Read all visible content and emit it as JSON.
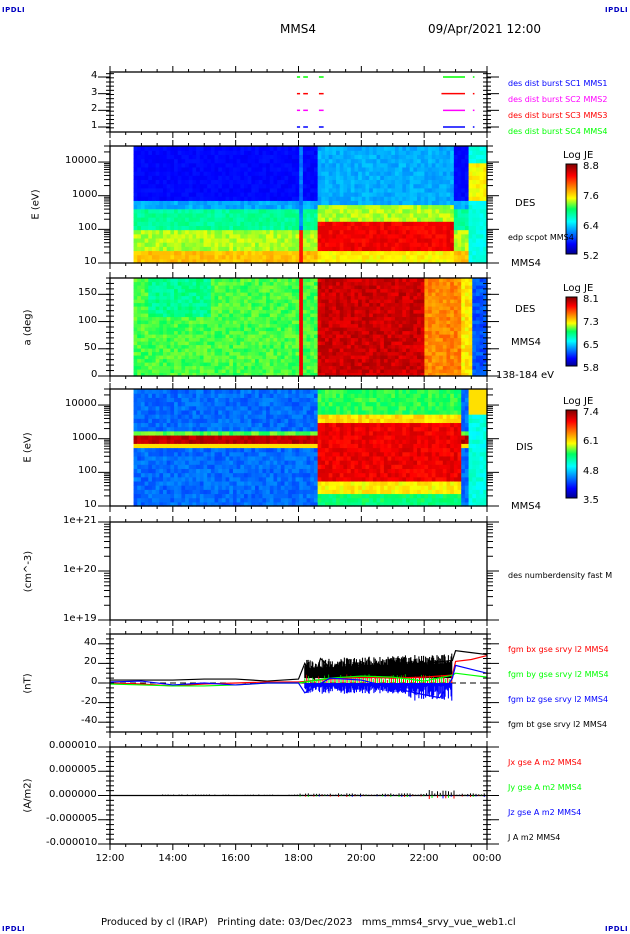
{
  "corner_tags": {
    "top_left": "IPDLI",
    "top_right": "IPDLI",
    "bottom_left": "IPDLI",
    "bottom_right": "IPDLI"
  },
  "header": {
    "spacecraft": "MMS4",
    "start_time": "09/Apr/2021 12:00"
  },
  "footer": {
    "text": "Produced by cl (IRAP)   Printing date: 03/Dec/2023   mms_mms4_srvy_vue_web1.cl"
  },
  "colors": {
    "blue": "#0000ff",
    "magenta": "#ff00ff",
    "red": "#ff0000",
    "green": "#00ff00",
    "black": "#000000"
  },
  "chart_data": [
    {
      "type": "line",
      "name": "burst-availability",
      "xlabel": "",
      "ylabel": "",
      "yticks": [
        "1",
        "2",
        "3",
        "4"
      ],
      "ylim": [
        0.7,
        4.3
      ],
      "legend": [
        {
          "label": "des dist burst SC1 MMS1",
          "color": "#0000ff"
        },
        {
          "label": "des dist burst SC2 MMS2",
          "color": "#ff00ff"
        },
        {
          "label": "des dist burst SC3 MMS3",
          "color": "#ff0000"
        },
        {
          "label": "des dist burst SC4 MMS4",
          "color": "#00ff00"
        }
      ],
      "series": [
        {
          "level": 4,
          "color": "#00ff00",
          "intervals": [
            [
              17.95,
              18.05
            ],
            [
              18.15,
              18.3
            ],
            [
              18.65,
              18.8
            ],
            [
              22.6,
              23.3
            ],
            [
              23.55,
              23.6
            ]
          ]
        },
        {
          "level": 3,
          "color": "#ff0000",
          "intervals": [
            [
              17.95,
              18.05
            ],
            [
              18.15,
              18.3
            ],
            [
              18.65,
              18.8
            ],
            [
              22.55,
              23.3
            ],
            [
              23.55,
              23.6
            ]
          ]
        },
        {
          "level": 2,
          "color": "#ff00ff",
          "intervals": [
            [
              17.95,
              18.05
            ],
            [
              18.15,
              18.3
            ],
            [
              18.65,
              18.8
            ],
            [
              22.6,
              23.3
            ],
            [
              23.55,
              23.6
            ]
          ]
        },
        {
          "level": 1,
          "color": "#0000ff",
          "intervals": [
            [
              17.95,
              18.05
            ],
            [
              18.15,
              18.3
            ],
            [
              18.65,
              18.8
            ],
            [
              22.6,
              23.3
            ],
            [
              23.55,
              23.6
            ]
          ]
        }
      ]
    },
    {
      "type": "heatmap",
      "name": "des-energy-spectrogram",
      "ylabel": "E (eV)",
      "yscale": "log",
      "yticks": [
        "10",
        "100",
        "1000",
        "10000"
      ],
      "ylim": [
        10,
        30000
      ],
      "colorbar": {
        "title": "Log JE",
        "ticks": [
          "8.8",
          "7.6",
          "6.4",
          "5.2"
        ],
        "range": [
          5.2,
          8.8
        ]
      },
      "labels": {
        "instrument": "DES",
        "overlay": "edp scpot MMS4",
        "spacecraft": "MMS4"
      }
    },
    {
      "type": "heatmap",
      "name": "des-pitch-angle",
      "ylabel": "a (deg)",
      "yticks": [
        "0",
        "50",
        "100",
        "150"
      ],
      "ylim": [
        0,
        180
      ],
      "colorbar": {
        "title": "Log JE",
        "ticks": [
          "8.1",
          "7.3",
          "6.5",
          "5.8"
        ],
        "range": [
          5.8,
          8.1
        ]
      },
      "labels": {
        "instrument": "DES",
        "spacecraft": "MMS4",
        "energy_range": "138-184 eV"
      }
    },
    {
      "type": "heatmap",
      "name": "dis-energy-spectrogram",
      "ylabel": "E (eV)",
      "yscale": "log",
      "yticks": [
        "10",
        "100",
        "1000",
        "10000"
      ],
      "ylim": [
        10,
        30000
      ],
      "colorbar": {
        "title": "Log JE",
        "ticks": [
          "7.4",
          "6.1",
          "4.8",
          "3.5"
        ],
        "range": [
          3.5,
          7.4
        ]
      },
      "labels": {
        "instrument": "DIS",
        "spacecraft": "MMS4"
      }
    },
    {
      "type": "line",
      "name": "des-number-density",
      "ylabel": "(cm^-3)",
      "yscale": "log",
      "yticks": [
        "1e+19",
        "1e+20",
        "1e+21"
      ],
      "ylim": [
        1e+19,
        1e+21
      ],
      "legend": [
        {
          "label": "des numberdensity fast M",
          "color": "#000000"
        }
      ]
    },
    {
      "type": "line",
      "name": "fgm-magnetic-field",
      "ylabel": "(nT)",
      "yticks": [
        "-40",
        "-20",
        "0",
        "20",
        "40"
      ],
      "ylim": [
        -50,
        50
      ],
      "legend": [
        {
          "label": "fgm bx gse srvy l2 MMS4",
          "color": "#ff0000"
        },
        {
          "label": "fgm by gse srvy l2 MMS4",
          "color": "#00ff00"
        },
        {
          "label": "fgm bz gse srvy l2 MMS4",
          "color": "#0000ff"
        },
        {
          "label": "fgm bt gse srvy l2 MMS4",
          "color": "#000000"
        }
      ],
      "series": [
        {
          "name": "bt",
          "color": "#000000",
          "x": [
            12,
            13,
            14,
            15,
            16,
            17,
            18,
            18.2,
            18.5,
            18.7,
            19,
            20,
            21,
            22,
            22.9,
            23.0,
            23.5,
            24
          ],
          "y": [
            3,
            3,
            3,
            4,
            4,
            2,
            4,
            20,
            4,
            25,
            15,
            18,
            18,
            20,
            23,
            33,
            31,
            29
          ]
        },
        {
          "name": "bx",
          "color": "#ff0000",
          "x": [
            12,
            13,
            14,
            15,
            16,
            17,
            18,
            19,
            20,
            21,
            22,
            22.9,
            23.0,
            23.5,
            24
          ],
          "y": [
            0,
            -1,
            -3,
            -1,
            0,
            1,
            1,
            4,
            6,
            5,
            6,
            8,
            22,
            24,
            28
          ]
        },
        {
          "name": "by",
          "color": "#00ff00",
          "x": [
            12,
            13,
            14,
            15,
            16,
            17,
            18,
            19,
            20,
            21,
            22,
            22.9,
            23.0,
            23.5,
            24
          ],
          "y": [
            -1,
            -2,
            -3,
            -3,
            -2,
            0,
            0,
            5,
            7,
            6,
            2,
            8,
            10,
            8,
            6
          ]
        },
        {
          "name": "bz",
          "color": "#0000ff",
          "x": [
            12,
            13,
            14,
            15,
            16,
            17,
            18,
            18.2,
            19,
            20,
            21,
            22,
            22.5,
            22.9,
            23.0,
            23.5,
            24
          ],
          "y": [
            1,
            2,
            -2,
            0,
            -2,
            0,
            0,
            -10,
            5,
            3,
            -5,
            -12,
            -15,
            5,
            18,
            14,
            10
          ]
        }
      ]
    },
    {
      "type": "line",
      "name": "current-density",
      "ylabel": "(A/m2)",
      "yticks": [
        "-0.000010",
        "-0.000005",
        "0.000000",
        "0.000005",
        "0.000010"
      ],
      "ylim": [
        -1e-05,
        1e-05
      ],
      "legend": [
        {
          "label": "Jx gse A m2 MMS4",
          "color": "#ff0000"
        },
        {
          "label": "Jy gse A m2 MMS4",
          "color": "#00ff00"
        },
        {
          "label": "Jz gse A m2 MMS4",
          "color": "#0000ff"
        },
        {
          "label": "J A m2 MMS4",
          "color": "#000000"
        }
      ]
    }
  ],
  "time_axis": {
    "ticks": [
      "12:00",
      "14:00",
      "16:00",
      "18:00",
      "20:00",
      "22:00",
      "00:00"
    ],
    "range_hours": [
      12,
      24
    ]
  }
}
